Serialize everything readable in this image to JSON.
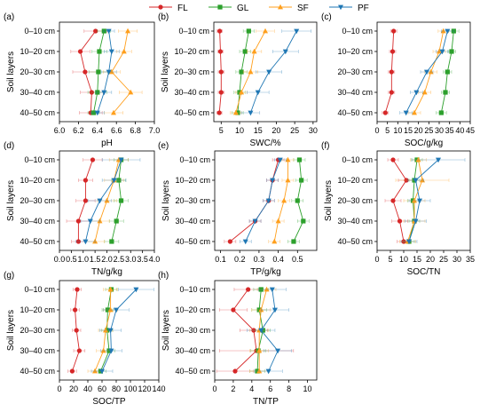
{
  "legend": [
    {
      "name": "FL",
      "color": "#d62728",
      "marker": "circle"
    },
    {
      "name": "GL",
      "color": "#2ca02c",
      "marker": "square"
    },
    {
      "name": "SF",
      "color": "#ff9f1c",
      "marker": "triangle-up"
    },
    {
      "name": "PF",
      "color": "#1f77b4",
      "marker": "triangle-down"
    }
  ],
  "chart_data": [
    {
      "type": "line",
      "panel": "(a)",
      "ylabel": "Soil layers",
      "xlabel": "pH",
      "categories": [
        "0–10 cm",
        "10–20 cm",
        "20–30 cm",
        "30–40 cm",
        "40–50 cm"
      ],
      "xlim": [
        6.0,
        7.0
      ],
      "xticks": [
        "6.0",
        "6.2",
        "6.4",
        "6.6",
        "6.8",
        "7.0"
      ],
      "series": [
        {
          "name": "FL",
          "values": [
            6.38,
            6.22,
            6.27,
            6.34,
            6.33
          ],
          "errors": [
            0.12,
            0.1,
            0.13,
            0.12,
            0.12
          ]
        },
        {
          "name": "GL",
          "values": [
            6.47,
            6.42,
            6.41,
            6.4,
            6.36
          ],
          "errors": [
            0.07,
            0.08,
            0.1,
            0.1,
            0.06
          ]
        },
        {
          "name": "SF",
          "values": [
            6.72,
            6.68,
            6.55,
            6.75,
            6.57
          ],
          "errors": [
            0.1,
            0.08,
            0.09,
            0.12,
            0.1
          ]
        },
        {
          "name": "PF",
          "values": [
            6.52,
            6.55,
            6.52,
            6.47,
            6.4
          ],
          "errors": [
            0.06,
            0.08,
            0.08,
            0.08,
            0.07
          ]
        }
      ]
    },
    {
      "type": "line",
      "panel": "(b)",
      "ylabel": "Soil layers",
      "xlabel": "SWC/%",
      "categories": [
        "0–10 cm",
        "10–20 cm",
        "20–30 cm",
        "30–40 cm",
        "40–50 cm"
      ],
      "xlim": [
        3,
        31
      ],
      "xticks": [
        "5",
        "10",
        "15",
        "20",
        "25",
        "30"
      ],
      "series": [
        {
          "name": "FL",
          "values": [
            4.6,
            4.8,
            5.0,
            5.0,
            4.5
          ],
          "errors": [
            0.7,
            0.7,
            0.8,
            0.8,
            0.7
          ]
        },
        {
          "name": "GL",
          "values": [
            12.5,
            11.5,
            10.5,
            10.0,
            9.5
          ],
          "errors": [
            1.5,
            1.5,
            1.5,
            1.5,
            1.5
          ]
        },
        {
          "name": "SF",
          "values": [
            17.0,
            14.0,
            13.0,
            10.5,
            9.0
          ],
          "errors": [
            2.5,
            2.0,
            2.0,
            1.5,
            1.5
          ]
        },
        {
          "name": "PF",
          "values": [
            25.5,
            22.5,
            18.0,
            15.0,
            13.0
          ],
          "errors": [
            4.0,
            3.5,
            3.5,
            3.0,
            2.5
          ]
        }
      ]
    },
    {
      "type": "line",
      "panel": "(c)",
      "ylabel": "",
      "xlabel": "SOC/g/kg",
      "categories": [
        "0–10 cm",
        "10–20 cm",
        "20–30 cm",
        "30–40 cm",
        "40–50 cm"
      ],
      "xlim": [
        0,
        45
      ],
      "xticks": [
        "0",
        "5",
        "10",
        "15",
        "20",
        "25",
        "30",
        "35",
        "40",
        "45"
      ],
      "series": [
        {
          "name": "FL",
          "values": [
            8.0,
            7.5,
            7.0,
            7.0,
            4.0
          ],
          "errors": [
            1.5,
            1.5,
            1.5,
            1.5,
            1.5
          ]
        },
        {
          "name": "GL",
          "values": [
            37.0,
            36.0,
            34.0,
            33.0,
            31.0
          ],
          "errors": [
            2.5,
            2.0,
            2.0,
            2.0,
            2.5
          ]
        },
        {
          "name": "SF",
          "values": [
            32.0,
            30.0,
            26.0,
            23.0,
            18.0
          ],
          "errors": [
            2.5,
            3.0,
            3.0,
            3.0,
            3.0
          ]
        },
        {
          "name": "PF",
          "values": [
            34.0,
            31.5,
            24.0,
            19.0,
            14.0
          ],
          "errors": [
            3.0,
            3.0,
            3.0,
            3.0,
            3.0
          ]
        }
      ]
    },
    {
      "type": "line",
      "panel": "(d)",
      "ylabel": "Soil layers",
      "xlabel": "TN/g/kg",
      "categories": [
        "0–10 cm",
        "10–20 cm",
        "20–30 cm",
        "30–40 cm",
        "40–50 cm"
      ],
      "xlim": [
        0,
        4.0
      ],
      "xticks": [
        "0.0",
        "0.5",
        "1.0",
        "1.5",
        "2.0",
        "2.5",
        "3.0",
        "3.5",
        "4.0"
      ],
      "series": [
        {
          "name": "FL",
          "values": [
            1.4,
            1.1,
            1.1,
            0.8,
            0.8
          ],
          "errors": [
            0.4,
            0.3,
            0.4,
            0.5,
            0.3
          ]
        },
        {
          "name": "GL",
          "values": [
            2.6,
            2.5,
            2.6,
            2.4,
            2.2
          ],
          "errors": [
            0.3,
            0.3,
            0.3,
            0.3,
            0.3
          ]
        },
        {
          "name": "SF",
          "values": [
            2.5,
            2.3,
            2.0,
            1.7,
            1.5
          ],
          "errors": [
            0.4,
            0.4,
            0.4,
            0.4,
            0.4
          ]
        },
        {
          "name": "PF",
          "values": [
            2.6,
            2.3,
            1.7,
            1.3,
            1.1
          ],
          "errors": [
            0.8,
            0.5,
            0.5,
            0.4,
            0.4
          ]
        }
      ]
    },
    {
      "type": "line",
      "panel": "(e)",
      "ylabel": "Soil layers",
      "xlabel": "TP/g/kg",
      "categories": [
        "0–10 cm",
        "10–20 cm",
        "20–30 cm",
        "30–40 cm",
        "40–50 cm"
      ],
      "xlim": [
        0.07,
        0.6
      ],
      "xticks": [
        "0.1",
        "0.2",
        "0.3",
        "0.4",
        "0.5"
      ],
      "series": [
        {
          "name": "FL",
          "values": [
            0.4,
            0.37,
            0.35,
            0.28,
            0.15
          ],
          "errors": [
            0.03,
            0.03,
            0.03,
            0.03,
            0.03
          ]
        },
        {
          "name": "GL",
          "values": [
            0.51,
            0.52,
            0.5,
            0.53,
            0.48
          ],
          "errors": [
            0.03,
            0.03,
            0.03,
            0.03,
            0.03
          ]
        },
        {
          "name": "SF",
          "values": [
            0.45,
            0.45,
            0.43,
            0.4,
            0.38
          ],
          "errors": [
            0.03,
            0.03,
            0.03,
            0.03,
            0.03
          ]
        },
        {
          "name": "PF",
          "values": [
            0.41,
            0.37,
            0.35,
            0.28,
            0.23
          ],
          "errors": [
            0.03,
            0.03,
            0.03,
            0.03,
            0.03
          ]
        }
      ]
    },
    {
      "type": "line",
      "panel": "(f)",
      "ylabel": "Soil layers",
      "xlabel": "SOC/TN",
      "categories": [
        "0–10 cm",
        "10–20 cm",
        "20–30 cm",
        "30–40 cm",
        "40–50 cm"
      ],
      "xlim": [
        0,
        35
      ],
      "xticks": [
        "0",
        "5",
        "10",
        "15",
        "20",
        "25",
        "30",
        "35"
      ],
      "series": [
        {
          "name": "FL",
          "values": [
            6.0,
            11.0,
            6.0,
            8.5,
            10.0
          ],
          "errors": [
            2.0,
            3.0,
            3.0,
            3.0,
            2.5
          ]
        },
        {
          "name": "GL",
          "values": [
            15.0,
            14.0,
            13.5,
            14.0,
            12.0
          ],
          "errors": [
            2.0,
            2.0,
            2.0,
            2.0,
            2.0
          ]
        },
        {
          "name": "SF",
          "values": [
            15.5,
            17.0,
            14.0,
            14.0,
            11.5
          ],
          "errors": [
            3.0,
            10.0,
            4.0,
            4.0,
            3.0
          ]
        },
        {
          "name": "PF",
          "values": [
            23.0,
            14.5,
            16.0,
            14.5,
            12.0
          ],
          "errors": [
            10.0,
            3.0,
            4.0,
            4.0,
            3.0
          ]
        }
      ]
    },
    {
      "type": "line",
      "panel": "(g)",
      "ylabel": "Soil layers",
      "xlabel": "SOC/TP",
      "categories": [
        "0–10 cm",
        "10–20 cm",
        "20–30 cm",
        "30–40 cm",
        "40–50 cm"
      ],
      "xlim": [
        0,
        140
      ],
      "xticks": [
        "0",
        "20",
        "40",
        "60",
        "80",
        "100",
        "120",
        "140"
      ],
      "series": [
        {
          "name": "FL",
          "values": [
            25,
            22,
            24,
            28,
            18
          ],
          "errors": [
            6,
            6,
            6,
            8,
            6
          ]
        },
        {
          "name": "GL",
          "values": [
            73,
            68,
            67,
            70,
            58
          ],
          "errors": [
            8,
            8,
            8,
            8,
            8
          ]
        },
        {
          "name": "SF",
          "values": [
            72,
            72,
            65,
            62,
            50
          ],
          "errors": [
            10,
            10,
            10,
            10,
            10
          ]
        },
        {
          "name": "PF",
          "values": [
            108,
            80,
            72,
            73,
            60
          ],
          "errors": [
            25,
            18,
            15,
            15,
            15
          ]
        }
      ]
    },
    {
      "type": "line",
      "panel": "(h)",
      "ylabel": "Soil layers",
      "xlabel": "TN/TP",
      "categories": [
        "0–10 cm",
        "10–20 cm",
        "20–30 cm",
        "30–40 cm",
        "40–50 cm"
      ],
      "xlim": [
        0,
        11
      ],
      "xticks": [
        "0",
        "2",
        "4",
        "6",
        "8",
        "10"
      ],
      "series": [
        {
          "name": "FL",
          "values": [
            3.6,
            2.0,
            4.2,
            4.5,
            2.2
          ],
          "errors": [
            1.5,
            1.5,
            1.5,
            4.0,
            2.0
          ]
        },
        {
          "name": "GL",
          "values": [
            5.0,
            4.8,
            5.2,
            4.7,
            4.6
          ],
          "errors": [
            0.8,
            0.8,
            0.8,
            0.8,
            0.8
          ]
        },
        {
          "name": "SF",
          "values": [
            5.6,
            5.0,
            4.8,
            4.8,
            4.8
          ],
          "errors": [
            1.0,
            1.0,
            1.0,
            1.0,
            1.0
          ]
        },
        {
          "name": "PF",
          "values": [
            6.2,
            6.5,
            5.0,
            6.8,
            5.8
          ],
          "errors": [
            1.5,
            1.5,
            1.5,
            1.5,
            1.5
          ]
        }
      ]
    }
  ]
}
